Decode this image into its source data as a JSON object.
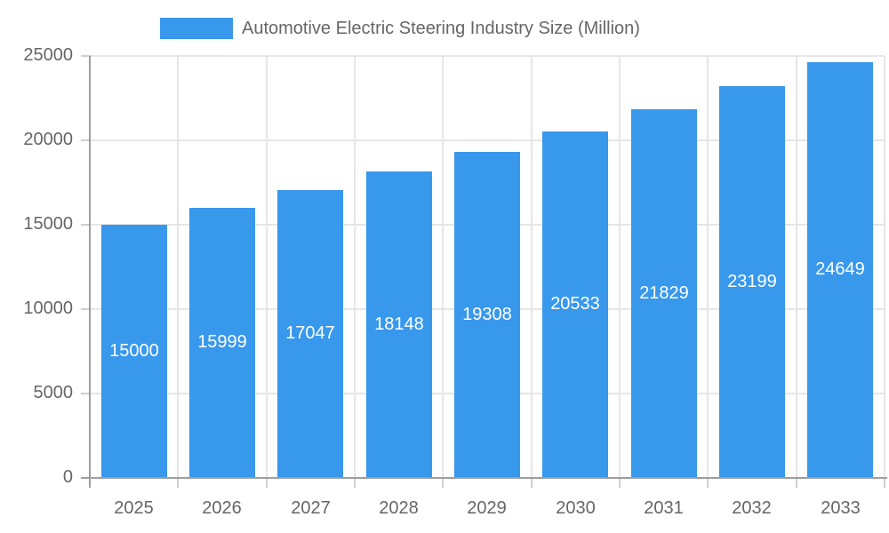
{
  "chart_data": {
    "type": "bar",
    "title": "Automotive Electric Steering Industry Size (Million)",
    "categories": [
      "2025",
      "2026",
      "2027",
      "2028",
      "2029",
      "2030",
      "2031",
      "2032",
      "2033"
    ],
    "values": [
      15000,
      15999,
      17047,
      18148,
      19308,
      20533,
      21829,
      23199,
      24649
    ],
    "xlabel": "",
    "ylabel": "",
    "ylim": [
      0,
      25000
    ],
    "y_ticks": [
      0,
      5000,
      10000,
      15000,
      20000,
      25000
    ],
    "grid": true,
    "legend_position": "top",
    "value_label_position": "inside-center"
  },
  "colors": {
    "bar": "#3898EC",
    "grid": "#e6e6e6",
    "tick": "#cfcfcf",
    "axis": "#9e9e9e",
    "text": "#666666",
    "value_label": "#ffffff",
    "background": "#ffffff"
  }
}
